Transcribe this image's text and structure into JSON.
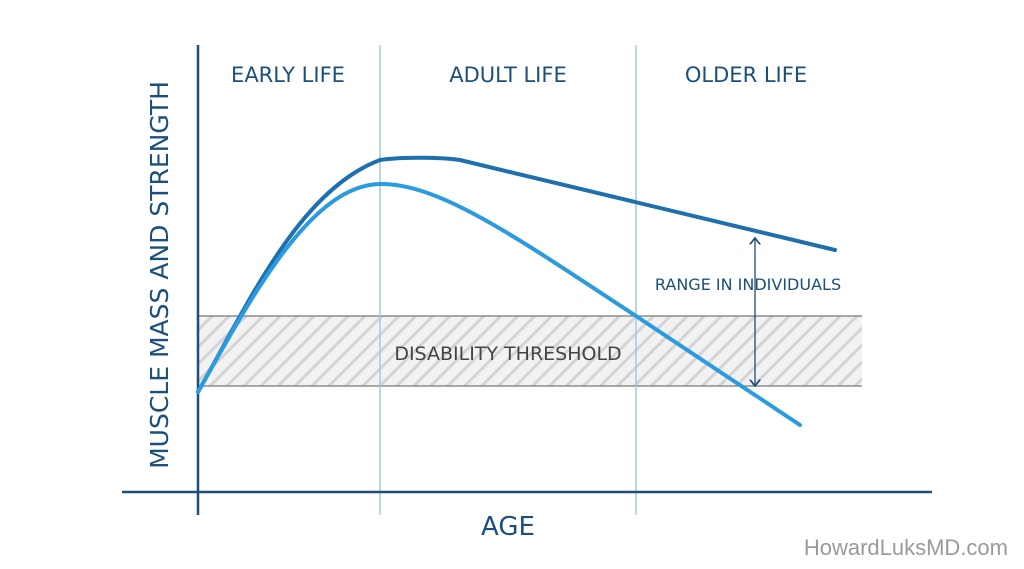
{
  "sections": [
    "EARLY LIFE",
    "ADULT LIFE",
    "OLDER LIFE"
  ],
  "y_axis_label": "MUSCLE MASS AND STRENGTH",
  "x_axis_label": "AGE",
  "annotations": {
    "range": "RANGE IN INDIVIDUALS",
    "threshold": "DISABILITY THRESHOLD"
  },
  "watermark": "HowardLuksMD.com"
}
